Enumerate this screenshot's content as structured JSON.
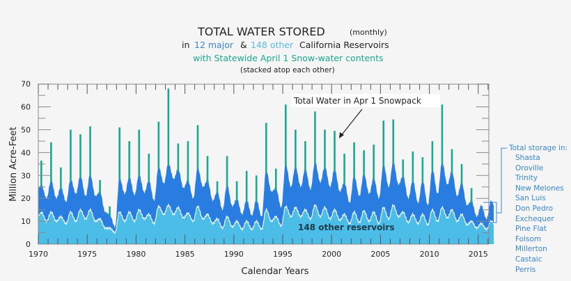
{
  "title": {
    "main": "TOTAL WATER STORED",
    "frequency": "(monthly)",
    "line2_in": "in",
    "line2_major": "12 major",
    "line2_amp": "&",
    "line2_other": "148 other",
    "line2_rest": "California Reservoirs",
    "line3": "with Statewide April 1 Snow-water contents",
    "line4": "(stacked atop each other)"
  },
  "colors": {
    "background": "#f5f5f5",
    "major_reservoirs": "#2a7de0",
    "other_reservoirs": "#4bbde6",
    "snowpack": "#1aa88f",
    "legend_text": "#3a86d6",
    "title_major": "#3a86d6",
    "title_other": "#5ab8e8",
    "title_snow": "#1aa88f"
  },
  "legend": {
    "heading": "Total storage in:",
    "items": [
      "Shasta",
      "Oroville",
      "Trinity",
      "New Melones",
      "San Luis",
      "Don Pedro",
      "Exchequer",
      "Pine Flat",
      "Folsom",
      "Millerton",
      "Castaic",
      "Perris"
    ]
  },
  "chart_data": {
    "type": "area",
    "stacked": true,
    "xlabel": "Calendar  Years",
    "ylabel": "Million Acre-Feet",
    "xlim": [
      1970,
      2016.2
    ],
    "ylim": [
      0,
      70
    ],
    "x_ticks": [
      "1970",
      "1975",
      "1980",
      "1985",
      "1990",
      "1995",
      "2000",
      "2005",
      "2010",
      "2015"
    ],
    "y_ticks": [
      "0",
      "10",
      "20",
      "30",
      "40",
      "50",
      "60",
      "70"
    ],
    "grid": false,
    "annotations": {
      "snowpack": "Total Water in Apr 1 Snowpack",
      "other": "148 other reservoirs"
    },
    "years": [
      1970,
      1971,
      1972,
      1973,
      1974,
      1975,
      1976,
      1977,
      1978,
      1979,
      1980,
      1981,
      1982,
      1983,
      1984,
      1985,
      1986,
      1987,
      1988,
      1989,
      1990,
      1991,
      1992,
      1993,
      1994,
      1995,
      1996,
      1997,
      1998,
      1999,
      2000,
      2001,
      2002,
      2003,
      2004,
      2005,
      2006,
      2007,
      2008,
      2009,
      2010,
      2011,
      2012,
      2013,
      2014,
      2015,
      2016
    ],
    "series": [
      {
        "key": "other_reservoirs",
        "annual_peak": [
          14,
          14,
          12,
          14,
          15,
          15,
          11,
          7,
          14,
          14,
          15,
          13,
          16.5,
          17,
          16,
          13.5,
          16.5,
          13,
          11,
          12,
          10,
          10,
          10,
          15,
          12,
          16.5,
          16,
          15,
          17,
          16,
          15,
          13,
          14,
          14.5,
          14,
          16,
          17,
          14,
          13,
          13,
          15,
          16,
          15,
          13,
          10,
          9,
          10
        ],
        "annual_low": [
          10,
          10,
          9,
          10,
          11,
          10,
          7,
          5,
          10,
          10,
          11,
          9,
          13,
          13,
          11.5,
          10,
          11,
          9,
          7,
          7.5,
          6.5,
          6.5,
          6.5,
          10,
          8,
          12,
          12,
          11,
          12,
          11,
          10.5,
          9,
          9.5,
          10,
          9,
          11,
          12,
          9.5,
          9,
          8.5,
          10,
          11.5,
          10,
          8.5,
          7,
          6.5,
          8
        ]
      },
      {
        "key": "total_storage",
        "annual_peak": [
          26,
          28,
          25,
          28.5,
          30,
          30.5,
          23,
          13,
          29,
          29.5,
          30.5,
          28,
          34,
          35.5,
          33,
          28,
          33.5,
          28,
          23,
          26,
          20,
          19.5,
          19.5,
          32.5,
          24.5,
          35,
          34,
          33,
          36,
          34,
          33,
          27,
          30,
          31,
          29,
          35,
          36,
          30,
          28,
          28,
          33,
          36,
          32,
          27,
          19,
          17,
          19
        ],
        "annual_low": [
          20,
          20,
          18.5,
          22,
          21,
          21,
          14,
          7.5,
          22,
          21.5,
          22.5,
          19,
          26.5,
          28.5,
          24.5,
          20,
          25,
          19,
          15,
          16.5,
          13,
          12.5,
          12,
          23,
          16,
          25,
          25,
          24,
          27,
          25,
          23,
          18,
          21,
          22,
          20,
          25,
          26,
          20,
          18,
          17,
          22,
          26,
          21,
          17,
          12,
          11,
          15
        ]
      },
      {
        "key": "snowpack_total",
        "april1_total": [
          36.5,
          44.5,
          33.5,
          50,
          48,
          51.5,
          28,
          16.5,
          51,
          45,
          50,
          39.5,
          53.5,
          68,
          44,
          45,
          52,
          38.5,
          27.5,
          38.5,
          27.5,
          32,
          30,
          53,
          33,
          61,
          50,
          45,
          58,
          50,
          49.5,
          39.5,
          44.5,
          41,
          43.5,
          54,
          54.5,
          37,
          40.5,
          38,
          45,
          61,
          41.5,
          35,
          24.5,
          null,
          null
        ]
      }
    ]
  }
}
